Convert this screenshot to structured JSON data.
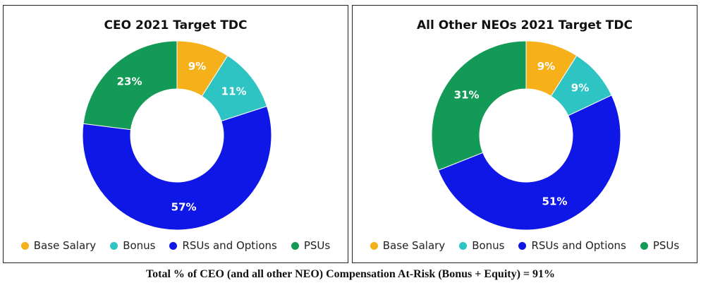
{
  "colors": {
    "base_salary": "#f5b01a",
    "bonus": "#2ec4c4",
    "rsus_and_options": "#0f17e6",
    "psus": "#149a57"
  },
  "footer": {
    "caption": "Total % of CEO (and all other NEO) Compensation At-Risk (Bonus + Equity) = 91%"
  },
  "chart_data": [
    {
      "type": "pie",
      "title": "CEO 2021 Target TDC",
      "legend": "bottom",
      "categories": [
        "Base Salary",
        "Bonus",
        "RSUs and Options",
        "PSUs"
      ],
      "values": [
        9,
        11,
        57,
        23
      ],
      "labels": [
        "9%",
        "11%",
        "57%",
        "23%"
      ],
      "colors": [
        "#f5b01a",
        "#2ec4c4",
        "#0f17e6",
        "#149a57"
      ]
    },
    {
      "type": "pie",
      "title": "All Other NEOs 2021 Target TDC",
      "legend": "bottom",
      "categories": [
        "Base Salary",
        "Bonus",
        "RSUs and Options",
        "PSUs"
      ],
      "values": [
        9,
        9,
        51,
        31
      ],
      "labels": [
        "9%",
        "9%",
        "51%",
        "31%"
      ],
      "colors": [
        "#f5b01a",
        "#2ec4c4",
        "#0f17e6",
        "#149a57"
      ]
    }
  ]
}
